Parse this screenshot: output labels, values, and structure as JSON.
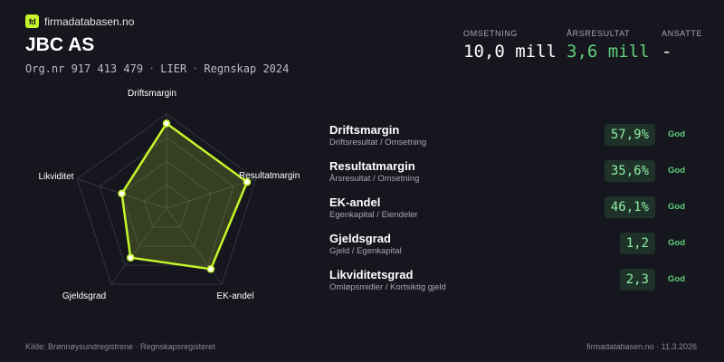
{
  "brand": {
    "logo_text": "fd",
    "name": "firmadatabasen.no"
  },
  "company": {
    "name": "JBC AS",
    "orgnr": "Org.nr 917 413 479",
    "location": "LIER",
    "period": "Regnskap 2024",
    "separator": "·"
  },
  "kpis": [
    {
      "label": "OMSETNING",
      "value": "10,0 mill"
    },
    {
      "label": "ÅRSRESULTAT",
      "value": "3,6 mill",
      "color": "#5fd07a"
    },
    {
      "label": "ANSATTE",
      "value": "-"
    }
  ],
  "chart_data": {
    "type": "radar",
    "axes": [
      "Driftsmargin",
      "Resultatmargin",
      "EK-andel",
      "Gjeldsgrad",
      "Likviditet"
    ],
    "values": [
      0.9,
      0.9,
      0.8,
      0.65,
      0.5
    ],
    "range": [
      0,
      1
    ],
    "grid_levels": 4,
    "line_color": "#c5f82a"
  },
  "metrics": [
    {
      "title": "Driftsmargin",
      "subtitle": "Driftsresultat / Omsetning",
      "value": "57,9%",
      "badge": "God"
    },
    {
      "title": "Resultatmargin",
      "subtitle": "Årsresultat / Omsetning",
      "value": "35,6%",
      "badge": "God"
    },
    {
      "title": "EK-andel",
      "subtitle": "Egenkapital / Eiendeler",
      "value": "46,1%",
      "badge": "God"
    },
    {
      "title": "Gjeldsgrad",
      "subtitle": "Gjeld / Egenkapital",
      "value": "1,2",
      "badge": "God"
    },
    {
      "title": "Likviditetsgrad",
      "subtitle": "Omløpsmidler / Kortsiktig gjeld",
      "value": "2,3",
      "badge": "God"
    }
  ],
  "footer": {
    "source": "Kilde: Brønnøysundregistrene · Regnskapsregisteret",
    "site_date": "firmadatabasen.no · 11.3.2026"
  },
  "colors": {
    "background": "#16161f",
    "accent": "#c5f82a",
    "good": "#5fd07a"
  }
}
